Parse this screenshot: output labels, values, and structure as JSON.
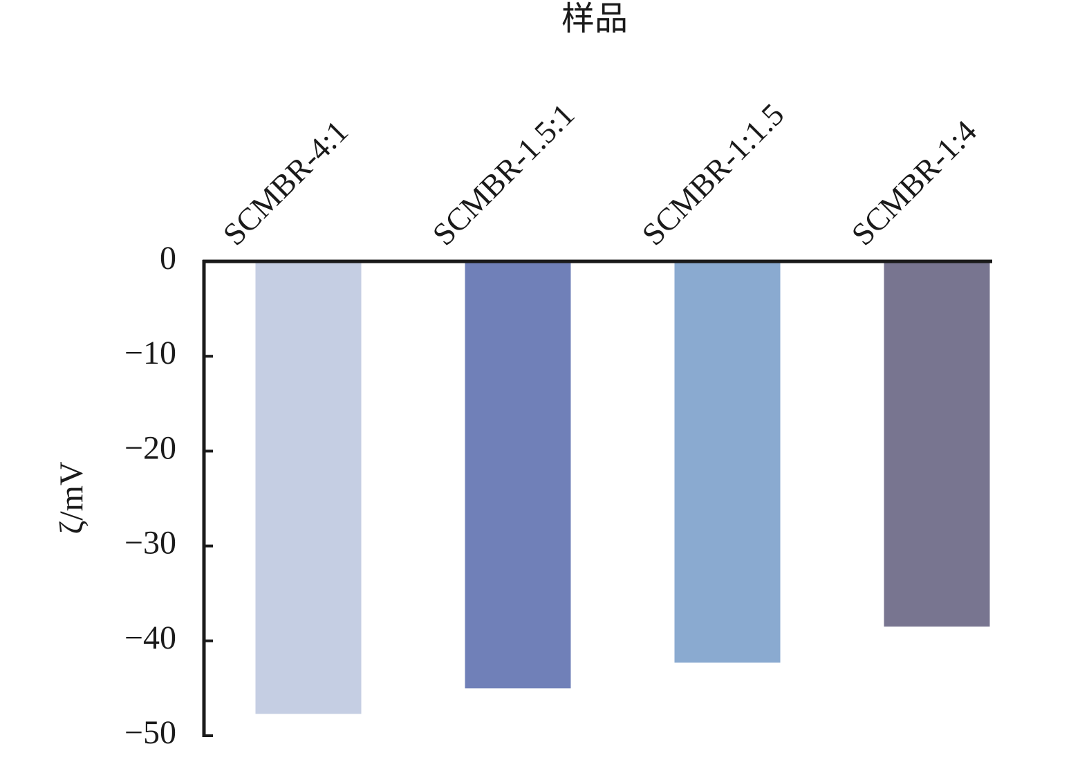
{
  "chart_data": {
    "type": "bar",
    "title": "样品",
    "y_label": "ζ/mV",
    "categories": [
      "SCMBR-4:1",
      "SCMBR-1.5:1",
      "SCMBR-1:1.5",
      "SCMBR-1:4"
    ],
    "values": [
      -47.7,
      -45.0,
      -42.3,
      -38.5
    ],
    "colors": [
      "#c5cee3",
      "#7080b8",
      "#8aaad0",
      "#787590"
    ],
    "ylim": [
      -50,
      0
    ],
    "yticks": [
      0,
      {
        "value": -10,
        "label": "−10"
      },
      {
        "value": -20,
        "label": "−20"
      },
      {
        "value": -30,
        "label": "−30"
      },
      {
        "value": -40,
        "label": "−40"
      },
      {
        "value": -50,
        "label": "−50"
      }
    ],
    "grid": false
  }
}
